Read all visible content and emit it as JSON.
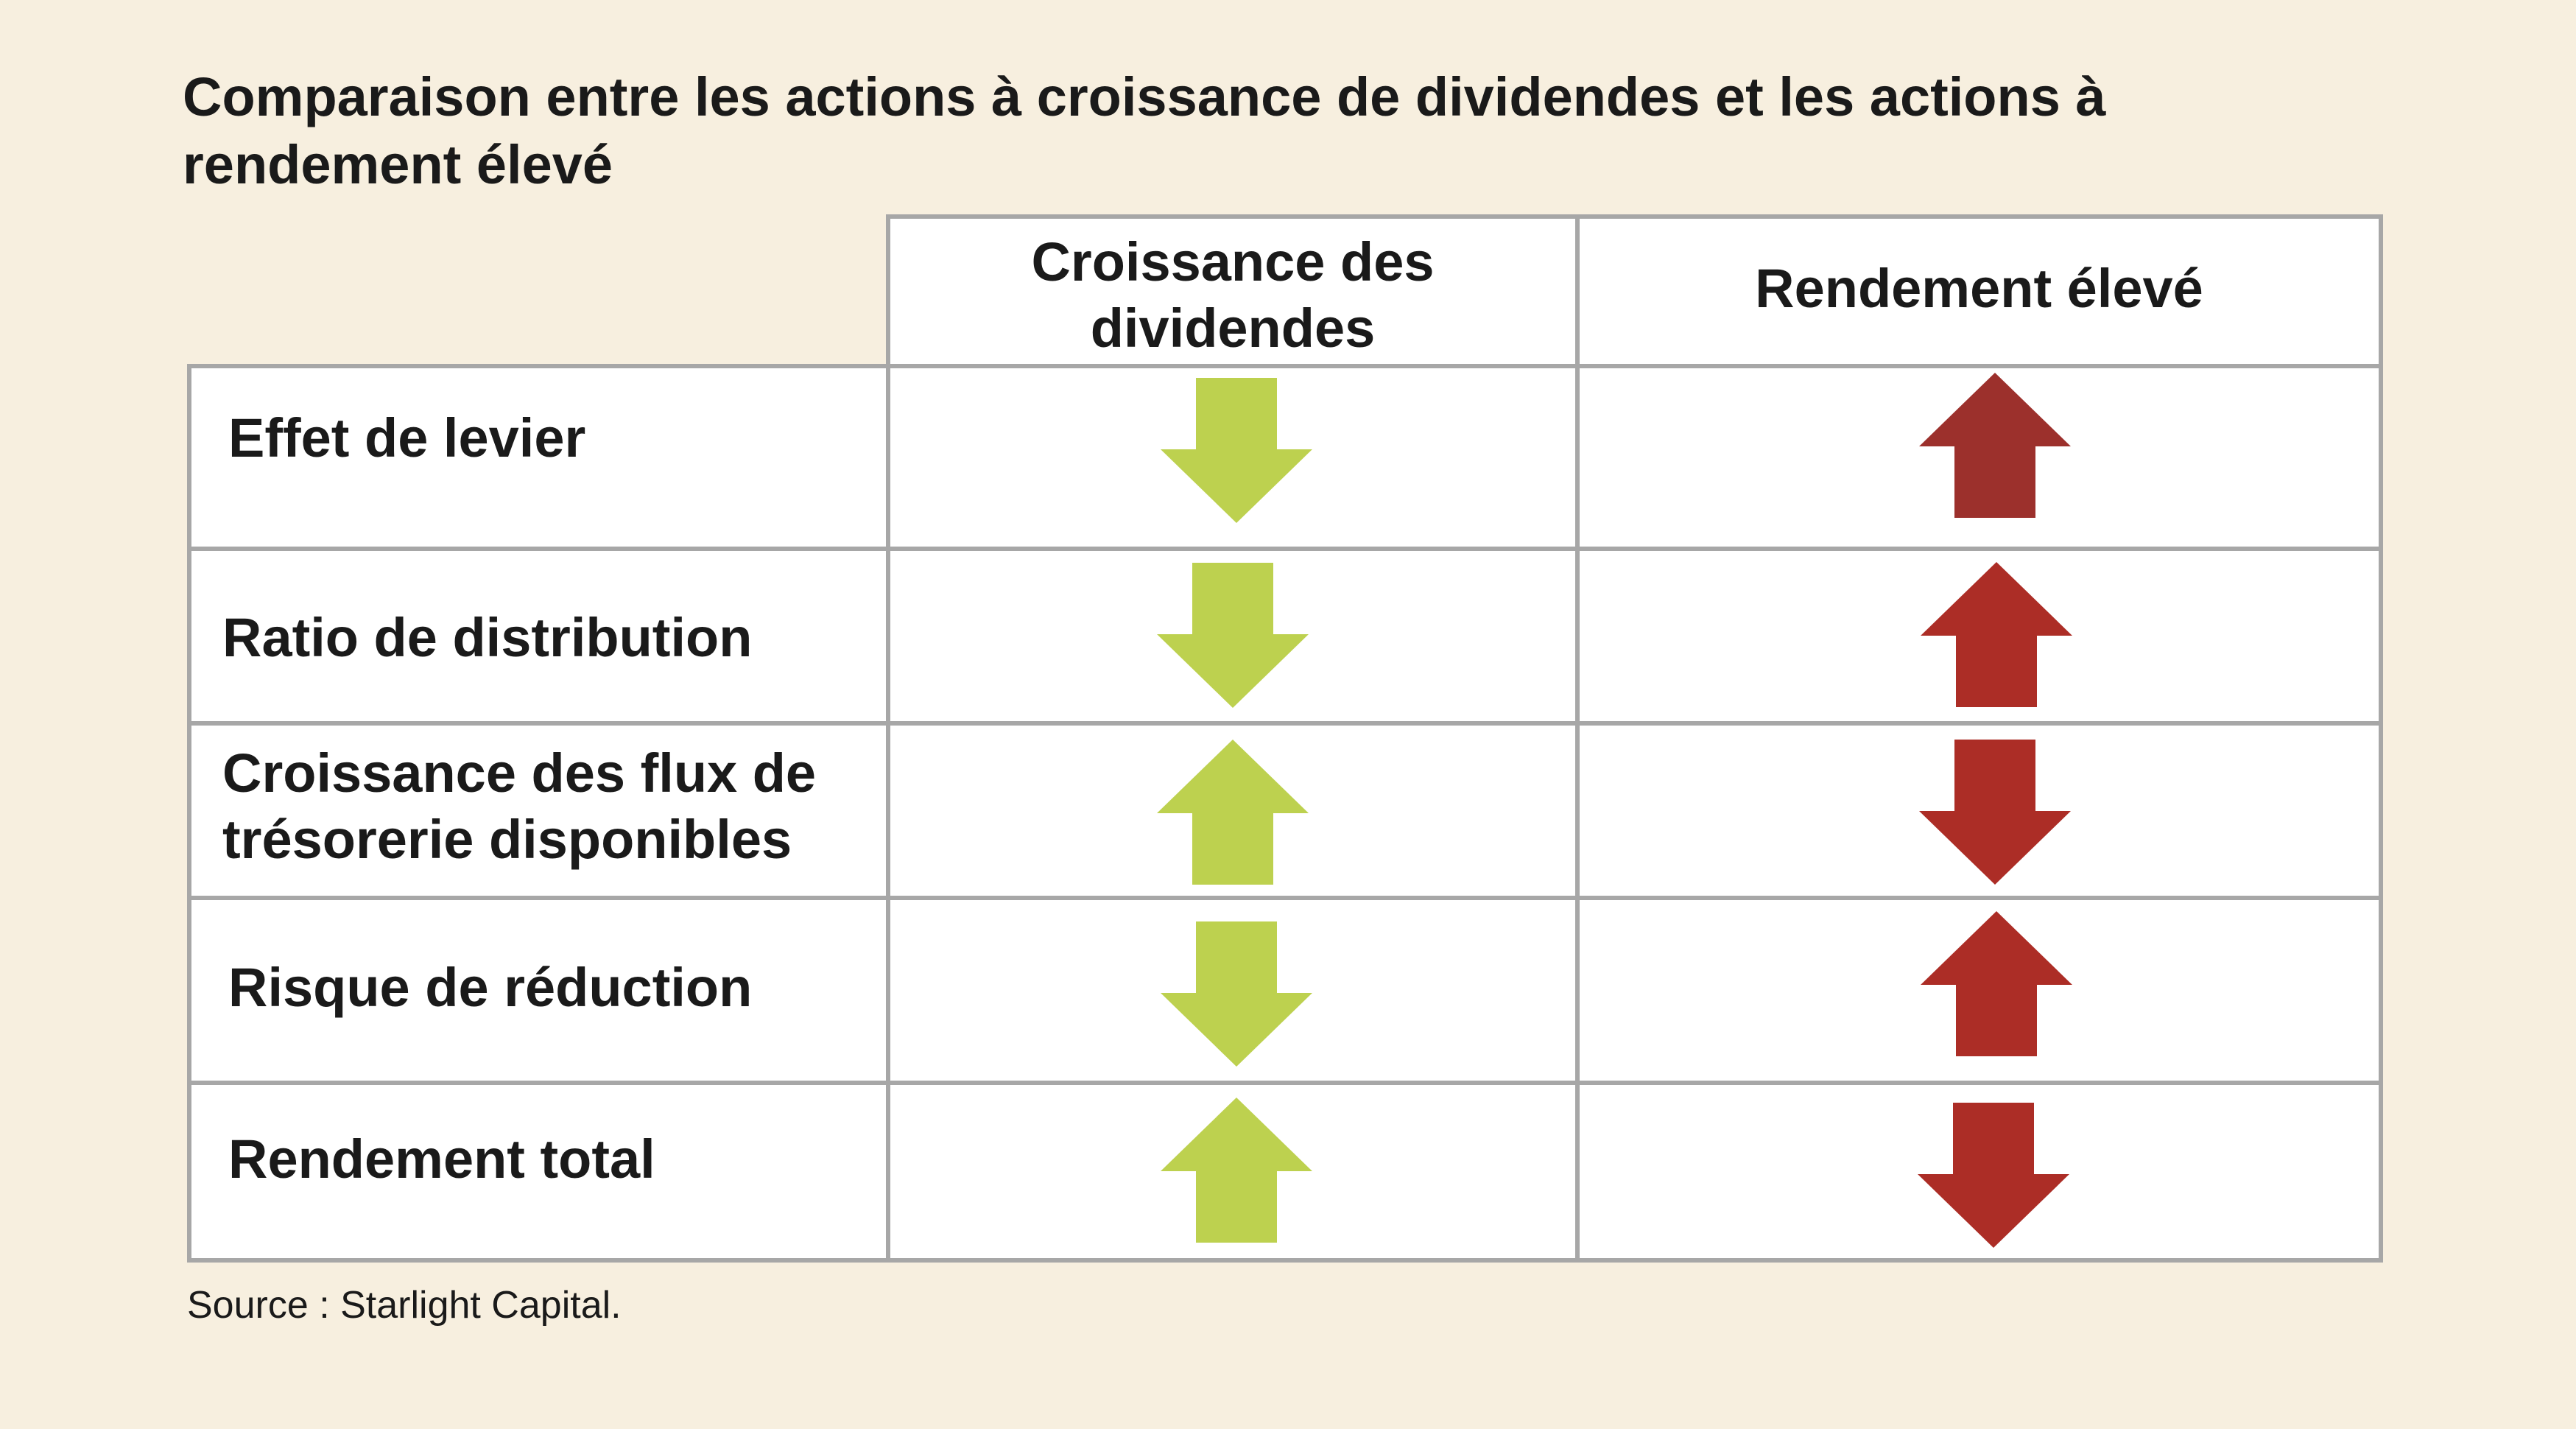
{
  "title": "Comparaison entre les actions à croissance de dividendes et les actions à rendement élevé",
  "columns": [
    {
      "label": "Croissance des dividendes"
    },
    {
      "label": "Rendement élevé"
    }
  ],
  "rows": [
    {
      "label": "Effet de levier",
      "dividend_growth": "down",
      "high_yield": "up"
    },
    {
      "label": "Ratio de distribution",
      "dividend_growth": "down",
      "high_yield": "up"
    },
    {
      "label": "Croissance des flux de trésorerie disponibles",
      "dividend_growth": "up",
      "high_yield": "down"
    },
    {
      "label": "Risque de réduction",
      "dividend_growth": "down",
      "high_yield": "up"
    },
    {
      "label": "Rendement total",
      "dividend_growth": "up",
      "high_yield": "down"
    }
  ],
  "colors": {
    "background": "#f7efdf",
    "green_arrow": "#bdd14f",
    "red_arrow": "#ac2d26",
    "dark_red_arrow": "#9c302c",
    "border": "#a7a7a7"
  },
  "icons": {
    "up": "arrow-up-icon",
    "down": "arrow-down-icon"
  },
  "source": "Source : Starlight Capital."
}
